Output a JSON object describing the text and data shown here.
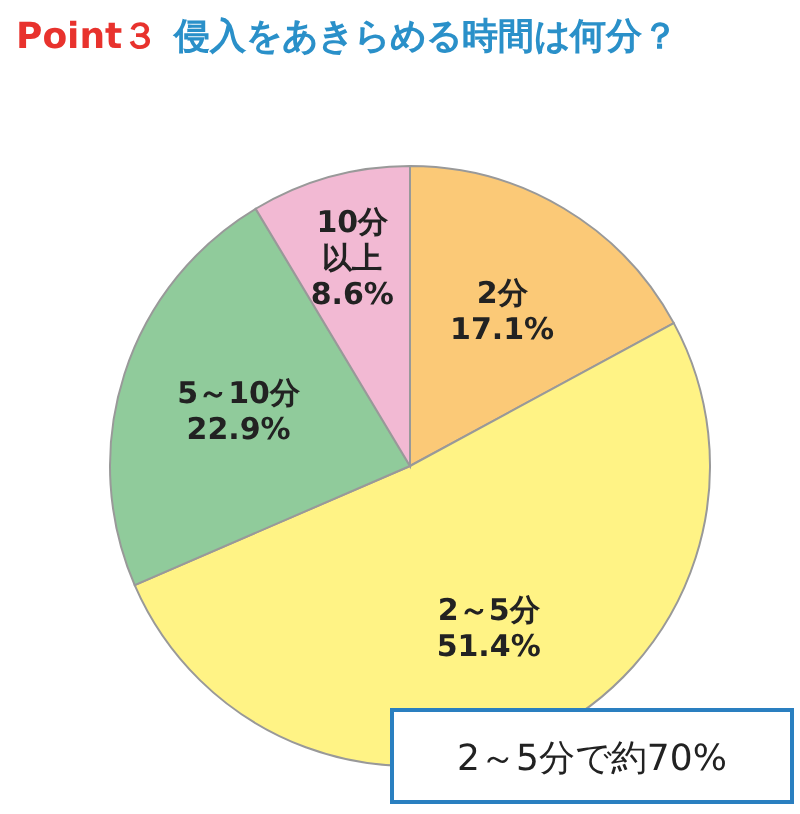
{
  "chart_data": {
    "type": "pie",
    "subtitle": "Point３",
    "title": "侵入をあきらめる時間は何分？",
    "categories": [
      "2分",
      "2～5分",
      "5～10分",
      "10分以上"
    ],
    "values": [
      17.1,
      51.4,
      22.9,
      8.6
    ],
    "value_labels": [
      "17.1%",
      "51.4%",
      "22.9%",
      "8.6%"
    ],
    "colors": [
      "#fbc977",
      "#fff385",
      "#90cb9b",
      "#f2b9d3"
    ],
    "annotations": [
      "2～5分で約70%"
    ]
  }
}
